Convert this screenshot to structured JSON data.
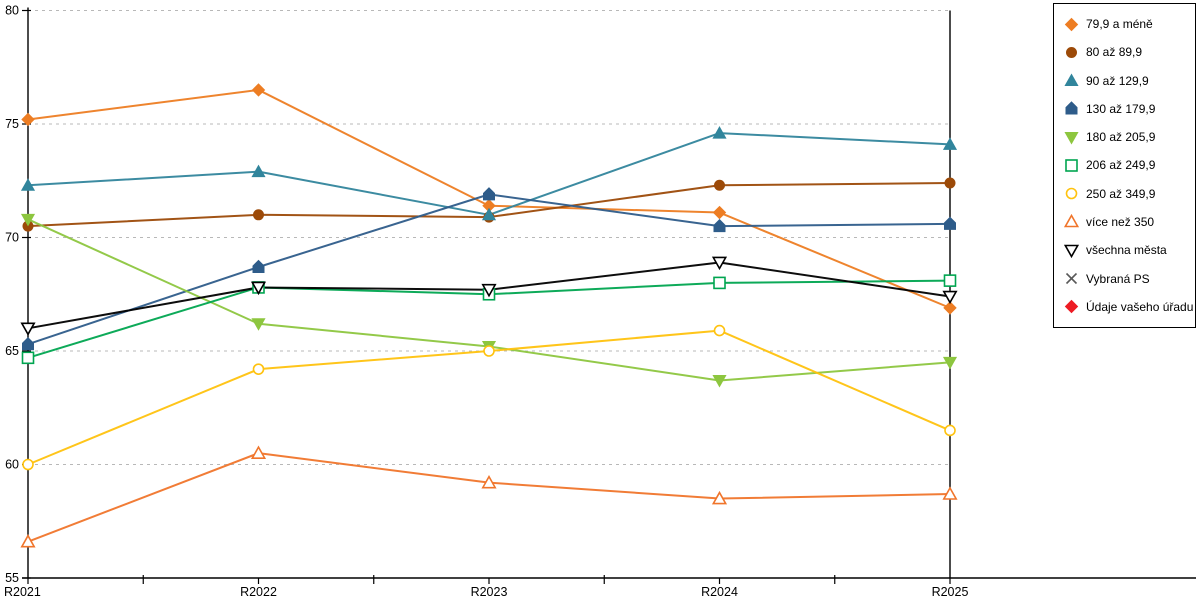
{
  "chart_data": {
    "type": "line",
    "title": "",
    "xlabel": "",
    "ylabel": "",
    "categories": [
      "R2021",
      "R2022",
      "R2023",
      "R2024",
      "R2025"
    ],
    "axis": {
      "y_min": 55,
      "y_max": 80,
      "y_step": 5,
      "y_tick_labels": [
        "55",
        "60",
        "65",
        "70",
        "75",
        "80"
      ],
      "grid": "horizontal-dashed",
      "grid_color": "#b8b8b8",
      "axis_color": "#000000"
    },
    "legend_position": "right-outside",
    "series": [
      {
        "name": "79,9 a méně",
        "color": "#ED7D23",
        "marker": "diamond",
        "open": false,
        "values": [
          75.2,
          76.5,
          71.4,
          71.1,
          66.9
        ]
      },
      {
        "name": "80 až 89,9",
        "color": "#9C4A08",
        "marker": "circle",
        "open": false,
        "values": [
          70.5,
          71.0,
          70.9,
          72.3,
          72.4
        ]
      },
      {
        "name": "90 až 129,9",
        "color": "#31859C",
        "marker": "triangle-up",
        "open": false,
        "values": [
          72.3,
          72.9,
          71.0,
          74.6,
          74.1
        ]
      },
      {
        "name": "130 až 179,9",
        "color": "#2E5C8A",
        "marker": "pentagon",
        "open": false,
        "values": [
          65.3,
          68.7,
          71.9,
          70.5,
          70.6
        ]
      },
      {
        "name": "180 až 205,9",
        "color": "#8DC63F",
        "marker": "triangle-down",
        "open": false,
        "values": [
          70.8,
          66.2,
          65.2,
          63.7,
          64.5
        ]
      },
      {
        "name": "206 až 249,9",
        "color": "#00A550",
        "marker": "square",
        "open": true,
        "values": [
          64.7,
          67.8,
          67.5,
          68.0,
          68.1
        ]
      },
      {
        "name": "250 až 349,9",
        "color": "#FFC20E",
        "marker": "circle",
        "open": true,
        "values": [
          60.0,
          64.2,
          65.0,
          65.9,
          61.5
        ]
      },
      {
        "name": "více než 350",
        "color": "#F0752B",
        "marker": "triangle-up",
        "open": true,
        "values": [
          56.6,
          60.5,
          59.2,
          58.5,
          58.7
        ]
      },
      {
        "name": "všechna města",
        "color": "#000000",
        "marker": "triangle-down",
        "open": true,
        "values": [
          66.0,
          67.8,
          67.7,
          68.9,
          67.4
        ]
      },
      {
        "name": "Vybraná PS",
        "color": "#595959",
        "marker": "x",
        "open": true,
        "values": []
      },
      {
        "name": "Údaje vašeho úřadu",
        "color": "#ED1C24",
        "marker": "diamond",
        "open": false,
        "values": []
      }
    ]
  }
}
